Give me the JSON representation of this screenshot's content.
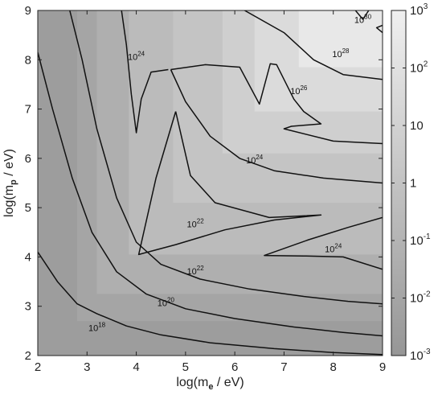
{
  "chart_data": {
    "type": "heatmap",
    "title": "",
    "xlabel": {
      "prefix": "log(m",
      "subscript": "e",
      "suffix": " / eV)"
    },
    "ylabel": {
      "prefix": "log(m",
      "subscript": "p",
      "suffix": " / eV)"
    },
    "xlim": [
      2,
      9
    ],
    "ylim": [
      2,
      9
    ],
    "x_ticks": [
      "2",
      "3",
      "4",
      "5",
      "6",
      "7",
      "8",
      "9"
    ],
    "y_ticks": [
      "2",
      "3",
      "4",
      "5",
      "6",
      "7",
      "8",
      "9"
    ],
    "colorbar": {
      "scale": "log",
      "range": [
        0.001,
        1000
      ],
      "ticks": [
        {
          "value": 1000,
          "base": "10",
          "exp": "3"
        },
        {
          "value": 100,
          "base": "10",
          "exp": "2"
        },
        {
          "value": 10,
          "base": "10",
          "exp": ""
        },
        {
          "value": 1,
          "base": "1",
          "exp": ""
        },
        {
          "value": 0.1,
          "base": "10",
          "exp": "-1"
        },
        {
          "value": 0.01,
          "base": "10",
          "exp": "-2"
        },
        {
          "value": 0.001,
          "base": "10",
          "exp": "-3"
        }
      ]
    },
    "regions": [
      {
        "level": 0.003,
        "points": [
          [
            2,
            2
          ],
          [
            9,
            2
          ],
          [
            9,
            9
          ],
          [
            2,
            9
          ]
        ]
      },
      {
        "level": 0.01,
        "points": [
          [
            2.8,
            9
          ],
          [
            2.8,
            2.7
          ],
          [
            9,
            2.7
          ],
          [
            9,
            9
          ]
        ]
      },
      {
        "level": 0.05,
        "points": [
          [
            3.2,
            9
          ],
          [
            3.2,
            3.25
          ],
          [
            9,
            3.25
          ],
          [
            9,
            9
          ]
        ]
      },
      {
        "level": 0.3,
        "points": [
          [
            3.85,
            9
          ],
          [
            3.85,
            4.05
          ],
          [
            9,
            4.05
          ],
          [
            9,
            9
          ]
        ]
      },
      {
        "level": 1.2,
        "points": [
          [
            4.75,
            9
          ],
          [
            4.75,
            5.1
          ],
          [
            9,
            5.1
          ],
          [
            9,
            9
          ]
        ]
      },
      {
        "level": 6,
        "points": [
          [
            5.75,
            9
          ],
          [
            5.75,
            6.1
          ],
          [
            9,
            6.1
          ],
          [
            9,
            9
          ]
        ]
      },
      {
        "level": 40,
        "points": [
          [
            6.4,
            9
          ],
          [
            6.4,
            6.95
          ],
          [
            9,
            6.95
          ],
          [
            9,
            9
          ]
        ]
      },
      {
        "level": 300,
        "points": [
          [
            7.3,
            9
          ],
          [
            7.3,
            7.85
          ],
          [
            9,
            7.85
          ],
          [
            9,
            9
          ]
        ]
      }
    ],
    "contours": [
      {
        "label": "10",
        "exp": "18",
        "label_at": [
          3.2,
          2.5
        ],
        "points": [
          [
            2,
            4.1
          ],
          [
            2.4,
            3.5
          ],
          [
            2.8,
            3.05
          ],
          [
            3.2,
            2.85
          ],
          [
            3.8,
            2.6
          ],
          [
            4.5,
            2.42
          ],
          [
            5.5,
            2.26
          ],
          [
            6.8,
            2.14
          ],
          [
            8,
            2.06
          ],
          [
            9,
            2.02
          ]
        ]
      },
      {
        "label": "10",
        "exp": "20",
        "label_at": [
          4.6,
          3.0
        ],
        "points": [
          [
            2,
            8.15
          ],
          [
            2.3,
            7.0
          ],
          [
            2.7,
            5.6
          ],
          [
            3.1,
            4.5
          ],
          [
            3.6,
            3.7
          ],
          [
            4.2,
            3.25
          ],
          [
            5.0,
            2.95
          ],
          [
            6.0,
            2.75
          ],
          [
            7.2,
            2.58
          ],
          [
            8.2,
            2.47
          ],
          [
            9,
            2.4
          ]
        ]
      },
      {
        "label": "10",
        "exp": "22",
        "label_at": [
          5.2,
          3.65
        ],
        "points": [
          [
            2.65,
            9
          ],
          [
            2.9,
            8.0
          ],
          [
            3.2,
            6.6
          ],
          [
            3.6,
            5.2
          ],
          [
            4.0,
            4.3
          ],
          [
            4.5,
            3.85
          ],
          [
            5.3,
            3.55
          ],
          [
            6.3,
            3.35
          ],
          [
            7.4,
            3.2
          ],
          [
            8.3,
            3.1
          ],
          [
            9,
            3.05
          ]
        ]
      },
      {
        "label": "10",
        "exp": "22",
        "label_at": [
          5.2,
          4.6
        ],
        "points": [
          [
            4.8,
            6.95
          ],
          [
            4.4,
            5.6
          ],
          [
            4.05,
            4.05
          ],
          [
            4.8,
            4.25
          ],
          [
            5.8,
            4.55
          ],
          [
            6.8,
            4.75
          ],
          [
            7.75,
            4.85
          ],
          [
            6.7,
            4.8
          ],
          [
            5.6,
            5.1
          ],
          [
            5.1,
            5.65
          ],
          [
            4.8,
            6.95
          ]
        ]
      },
      {
        "label": "10",
        "exp": "24",
        "label_at": [
          4.0,
          8.0
        ],
        "points": [
          [
            3.7,
            9
          ],
          [
            3.8,
            8.3
          ],
          [
            3.9,
            7.3
          ],
          [
            4.0,
            6.52
          ],
          [
            4.1,
            7.2
          ],
          [
            4.3,
            7.75
          ],
          [
            4.65,
            7.8
          ]
        ]
      },
      {
        "label": "10",
        "exp": "24",
        "label_at": [
          6.4,
          5.9
        ],
        "points": [
          [
            4.7,
            7.8
          ],
          [
            5.0,
            7.15
          ],
          [
            5.5,
            6.45
          ],
          [
            6.1,
            6.0
          ],
          [
            6.8,
            5.75
          ],
          [
            7.8,
            5.6
          ],
          [
            9,
            5.5
          ]
        ]
      },
      {
        "label": "10",
        "exp": "24",
        "label_at": [
          8.0,
          4.1
        ],
        "points": [
          [
            9,
            3.75
          ],
          [
            8.2,
            4.0
          ],
          [
            7.4,
            4.02
          ],
          [
            6.6,
            4.03
          ],
          [
            7.5,
            4.35
          ],
          [
            8.3,
            4.6
          ],
          [
            9,
            4.8
          ]
        ]
      },
      {
        "label": "10",
        "exp": "26",
        "label_at": [
          7.3,
          7.3
        ],
        "points": [
          [
            4.7,
            7.8
          ],
          [
            5.4,
            7.9
          ],
          [
            6.1,
            7.85
          ],
          [
            6.5,
            7.1
          ],
          [
            6.72,
            7.92
          ],
          [
            6.85,
            7.9
          ],
          [
            7.2,
            7.2
          ],
          [
            7.4,
            6.95
          ],
          [
            7.75,
            6.7
          ],
          [
            7.15,
            6.65
          ],
          [
            7.0,
            6.6
          ],
          [
            8.0,
            6.35
          ],
          [
            9,
            6.3
          ]
        ]
      },
      {
        "label": "10",
        "exp": "28",
        "label_at": [
          8.15,
          8.05
        ],
        "points": [
          [
            6.2,
            9
          ],
          [
            7.0,
            8.55
          ],
          [
            7.6,
            8.0
          ],
          [
            8.2,
            7.7
          ],
          [
            9,
            7.6
          ]
        ]
      },
      {
        "label": "10",
        "exp": "30",
        "label_at": [
          8.6,
          8.75
        ],
        "points": [
          [
            8.45,
            9
          ],
          [
            8.6,
            8.82
          ],
          [
            8.72,
            9
          ]
        ]
      },
      {
        "label": "",
        "exp": "",
        "points": [
          [
            9,
            8.7
          ],
          [
            8.88,
            8.65
          ],
          [
            9,
            8.55
          ]
        ]
      }
    ]
  }
}
